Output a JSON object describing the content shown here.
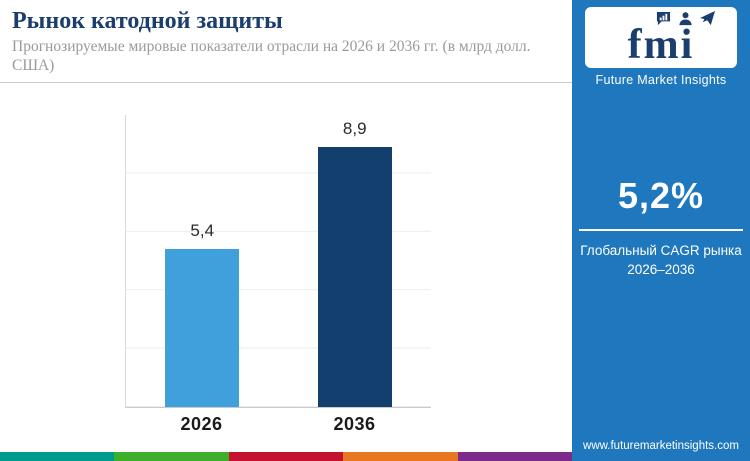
{
  "header": {
    "title": "Рынок катодной защиты",
    "subtitle": "Прогнозируемые мировые показатели отрасли на 2026 и 2036 гг. (в млрд долл. США)"
  },
  "chart_data": {
    "type": "bar",
    "title": "Рынок катодной защиты",
    "subtitle": "Прогнозируемые мировые показатели отрасли на 2026 и 2036 гг. (в млрд долл. США)",
    "categories": [
      "2026",
      "2036"
    ],
    "values": [
      5.4,
      8.9
    ],
    "value_labels": [
      "5,4",
      "8,9"
    ],
    "unit": "млрд долл. США",
    "xlabel": "",
    "ylabel": "",
    "ylim": [
      0,
      10
    ],
    "grid": true,
    "legend": false,
    "bar_colors": [
      "#3fa0dc",
      "#123f6d"
    ]
  },
  "sidebar": {
    "background": "#1f78be",
    "logo_text": "fmi",
    "brand_name": "Future Market Insights",
    "cagr_value": "5,2%",
    "cagr_label_line1": "Глобальный CAGR рынка",
    "cagr_label_line2": "2026–2036",
    "website": "www.futuremarketinsights.com"
  },
  "colors": {
    "title_text": "#1c3e6e",
    "subtitle_text": "#9a9a9a",
    "footer_stripe": [
      "#009b8f",
      "#3fae2a",
      "#c4122f",
      "#e87722",
      "#7d2b8b"
    ]
  }
}
